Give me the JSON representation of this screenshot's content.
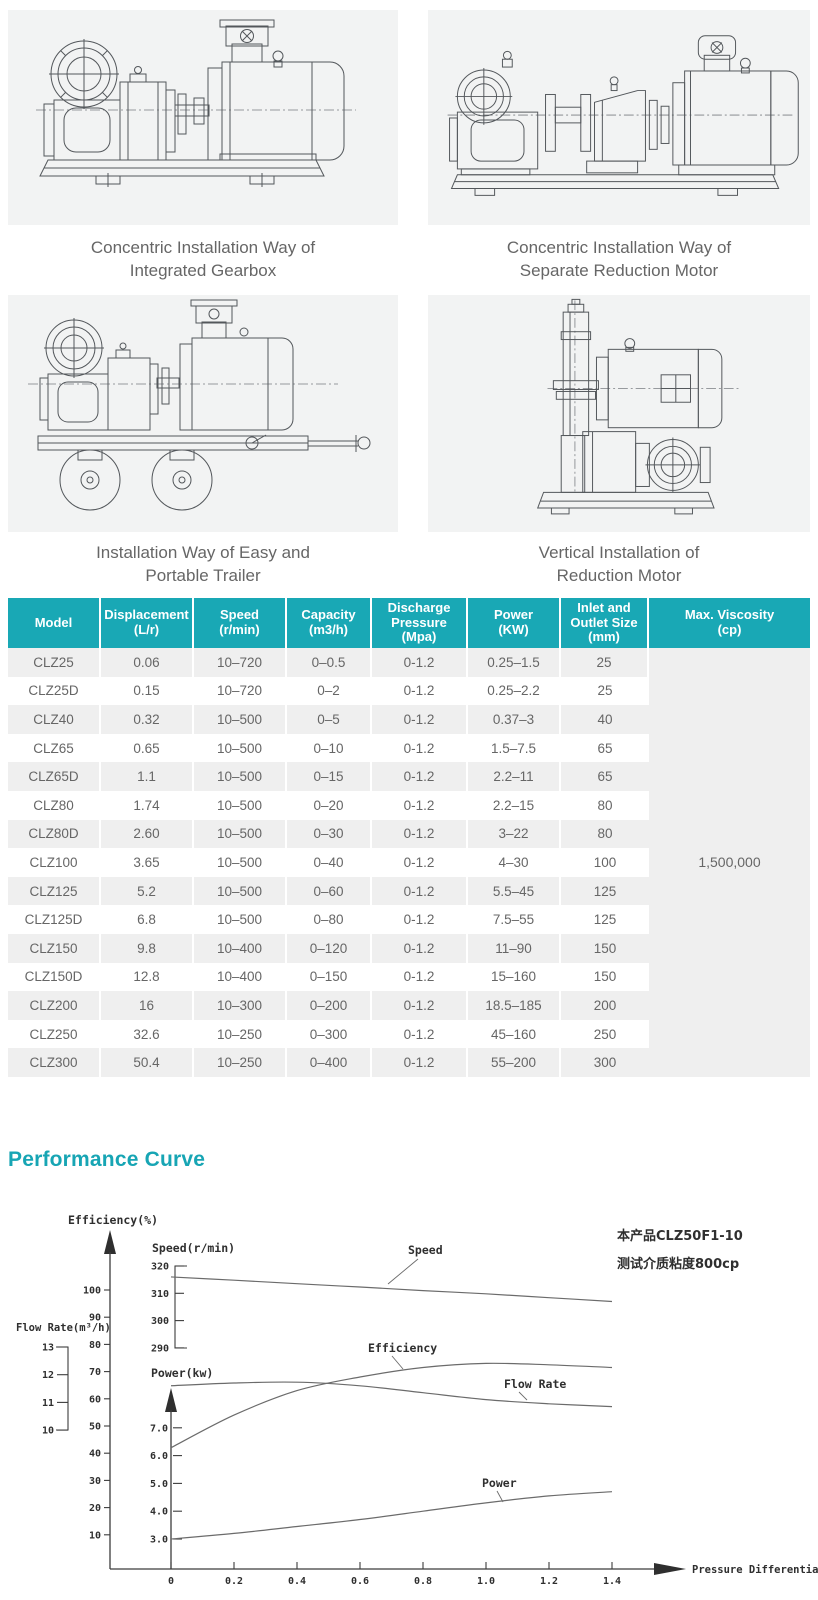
{
  "page": {
    "accent": "#19a8b5",
    "panel_bg": "#f2f3f3"
  },
  "drawings": [
    {
      "caption_line1": "Concentric Installation Way of",
      "caption_line2": "Integrated Gearbox"
    },
    {
      "caption_line1": "Concentric Installation Way of",
      "caption_line2": "Separate Reduction Motor"
    },
    {
      "caption_line1": "Installation Way of Easy and",
      "caption_line2": "Portable Trailer"
    },
    {
      "caption_line1": "Vertical Installation of",
      "caption_line2": "Reduction Motor"
    }
  ],
  "spec_table": {
    "headers": [
      [
        "Model"
      ],
      [
        "Displacement",
        "(L/r)"
      ],
      [
        "Speed",
        "(r/min)"
      ],
      [
        "Capacity",
        "(m3/h)"
      ],
      [
        "Discharge",
        "Pressure",
        "(Mpa)"
      ],
      [
        "Power",
        "(KW)"
      ],
      [
        "Inlet and",
        "Outlet Size",
        "(mm)"
      ],
      [
        "Max. Viscosity",
        "(cp)"
      ]
    ],
    "max_viscosity_value": "1,500,000",
    "rows": [
      [
        "CLZ25",
        "0.06",
        "10–720",
        "0–0.5",
        "0-1.2",
        "0.25–1.5",
        "25"
      ],
      [
        "CLZ25D",
        "0.15",
        "10–720",
        "0–2",
        "0-1.2",
        "0.25–2.2",
        "25"
      ],
      [
        "CLZ40",
        "0.32",
        "10–500",
        "0–5",
        "0-1.2",
        "0.37–3",
        "40"
      ],
      [
        "CLZ65",
        "0.65",
        "10–500",
        "0–10",
        "0-1.2",
        "1.5–7.5",
        "65"
      ],
      [
        "CLZ65D",
        "1.1",
        "10–500",
        "0–15",
        "0-1.2",
        "2.2–11",
        "65"
      ],
      [
        "CLZ80",
        "1.74",
        "10–500",
        "0–20",
        "0-1.2",
        "2.2–15",
        "80"
      ],
      [
        "CLZ80D",
        "2.60",
        "10–500",
        "0–30",
        "0-1.2",
        "3–22",
        "80"
      ],
      [
        "CLZ100",
        "3.65",
        "10–500",
        "0–40",
        "0-1.2",
        "4–30",
        "100"
      ],
      [
        "CLZ125",
        "5.2",
        "10–500",
        "0–60",
        "0-1.2",
        "5.5–45",
        "125"
      ],
      [
        "CLZ125D",
        "6.8",
        "10–500",
        "0–80",
        "0-1.2",
        "7.5–55",
        "125"
      ],
      [
        "CLZ150",
        "9.8",
        "10–400",
        "0–120",
        "0-1.2",
        "11–90",
        "150"
      ],
      [
        "CLZ150D",
        "12.8",
        "10–400",
        "0–150",
        "0-1.2",
        "15–160",
        "150"
      ],
      [
        "CLZ200",
        "16",
        "10–300",
        "0–200",
        "0-1.2",
        "18.5–185",
        "200"
      ],
      [
        "CLZ250",
        "32.6",
        "10–250",
        "0–300",
        "0-1.2",
        "45–160",
        "250"
      ],
      [
        "CLZ300",
        "50.4",
        "10–250",
        "0–400",
        "0-1.2",
        "55–200",
        "300"
      ]
    ]
  },
  "performance": {
    "heading": "Performance Curve"
  },
  "chart_data": {
    "type": "line",
    "title": "Performance Curve",
    "xlabel": "Pressure Differential(Mpa)",
    "x": [
      0,
      0.2,
      0.4,
      0.6,
      0.8,
      1.0,
      1.2,
      1.4
    ],
    "x_ticks": [
      "0",
      "0.2",
      "0.4",
      "0.6",
      "0.8",
      "1.0",
      "1.2",
      "1.4"
    ],
    "grid": false,
    "legend_position": "inline-labels",
    "axis_labels": {
      "efficiency": "Efficiency(%)",
      "speed": "Speed(r/min)",
      "flow": "Flow Rate(m³/h)",
      "power": "Power(kw)"
    },
    "annotation": [
      "本产品CLZ50F1-10",
      "测试介质粘度800cp"
    ],
    "series": [
      {
        "name": "Speed",
        "unit": "r/min",
        "axis_ticks": [
          320,
          310,
          300,
          290
        ],
        "values": [
          316,
          314.8,
          313.5,
          312.3,
          311,
          309.8,
          308.4,
          307
        ]
      },
      {
        "name": "Efficiency",
        "unit": "%",
        "axis_ticks": [
          100,
          90,
          80,
          70,
          60,
          50,
          40,
          30,
          20,
          10
        ],
        "values": [
          42,
          54,
          63,
          68,
          71.5,
          73,
          72.5,
          71.5
        ]
      },
      {
        "name": "Flow Rate",
        "unit": "m³/h",
        "axis_ticks": [
          13,
          12,
          11,
          10
        ],
        "values": [
          11.6,
          11.7,
          11.73,
          11.6,
          11.35,
          11.1,
          10.95,
          10.85
        ]
      },
      {
        "name": "Power",
        "unit": "kw",
        "axis_ticks": [
          7.0,
          6.0,
          5.0,
          4.0,
          3.0
        ],
        "values": [
          3.0,
          3.2,
          3.45,
          3.7,
          4.0,
          4.3,
          4.55,
          4.7
        ]
      }
    ]
  }
}
